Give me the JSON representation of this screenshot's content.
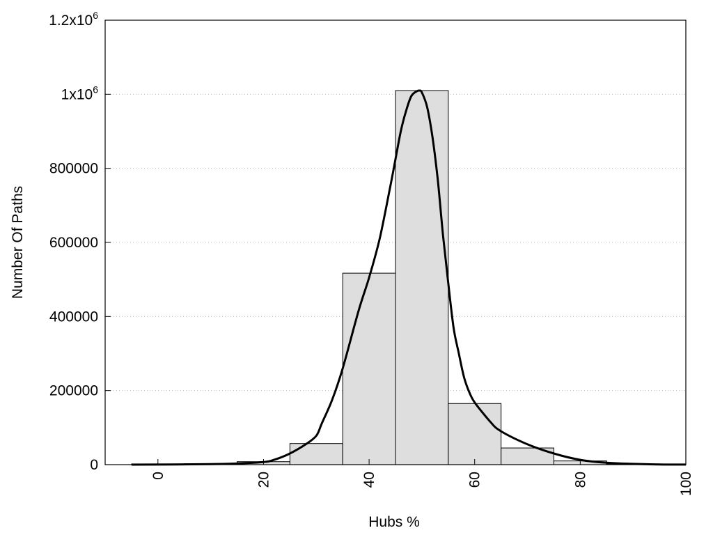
{
  "chart_data": {
    "type": "bar",
    "xlabel": "Hubs %",
    "ylabel": "Number Of Paths",
    "xlim": [
      -10,
      100
    ],
    "ylim": [
      0,
      1200000
    ],
    "x_ticks": [
      {
        "value": 0,
        "label": "0"
      },
      {
        "value": 20,
        "label": "20"
      },
      {
        "value": 40,
        "label": "40"
      },
      {
        "value": 60,
        "label": "60"
      },
      {
        "value": 80,
        "label": "80"
      },
      {
        "value": 100,
        "label": "100"
      }
    ],
    "y_ticks": [
      {
        "value": 0,
        "base": "0",
        "exp": ""
      },
      {
        "value": 200000,
        "base": "200000",
        "exp": ""
      },
      {
        "value": 400000,
        "base": "400000",
        "exp": ""
      },
      {
        "value": 600000,
        "base": "600000",
        "exp": ""
      },
      {
        "value": 800000,
        "base": "800000",
        "exp": ""
      },
      {
        "value": 1000000,
        "base": "1x10",
        "exp": "6"
      },
      {
        "value": 1200000,
        "base": "1.2x10",
        "exp": "6"
      }
    ],
    "grid": "horizontal-dotted",
    "bar_color": "#dedede",
    "line_color": "#000000",
    "bins": [
      {
        "start": -5,
        "end": 5,
        "value": 2000
      },
      {
        "start": 5,
        "end": 15,
        "value": 2500
      },
      {
        "start": 15,
        "end": 25,
        "value": 8000
      },
      {
        "start": 25,
        "end": 35,
        "value": 57000
      },
      {
        "start": 35,
        "end": 45,
        "value": 517000
      },
      {
        "start": 45,
        "end": 55,
        "value": 1010000
      },
      {
        "start": 55,
        "end": 65,
        "value": 165000
      },
      {
        "start": 65,
        "end": 75,
        "value": 45000
      },
      {
        "start": 75,
        "end": 85,
        "value": 10000
      },
      {
        "start": 85,
        "end": 95,
        "value": 2000
      },
      {
        "start": 95,
        "end": 105,
        "value": 1000
      }
    ],
    "curve": {
      "x": [
        -5,
        0,
        10,
        15,
        20,
        22,
        25,
        28,
        30,
        31,
        33,
        35,
        38,
        40,
        42,
        44,
        45,
        46,
        47,
        48,
        49,
        49.5,
        50,
        51,
        52,
        53,
        54,
        55,
        56,
        57,
        58,
        59,
        60,
        63,
        65,
        70,
        75,
        80,
        85,
        90,
        95,
        100
      ],
      "y": [
        0,
        200,
        1500,
        3000,
        7000,
        13000,
        30000,
        55000,
        78000,
        110000,
        175000,
        260000,
        415000,
        505000,
        610000,
        750000,
        825000,
        900000,
        955000,
        995000,
        1008000,
        1010000,
        1005000,
        965000,
        885000,
        770000,
        620000,
        490000,
        370000,
        300000,
        235000,
        195000,
        168000,
        115000,
        90000,
        55000,
        30000,
        13000,
        5000,
        2000,
        500,
        200
      ]
    }
  }
}
